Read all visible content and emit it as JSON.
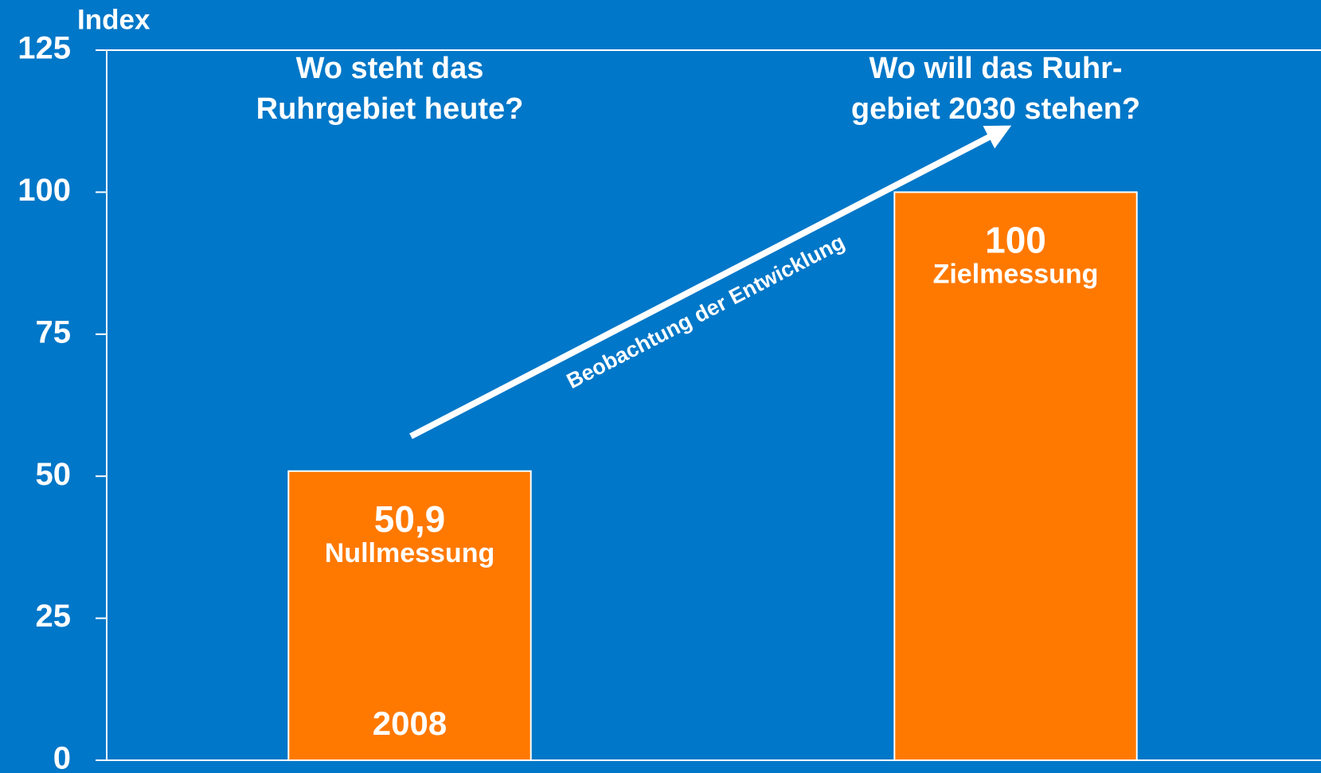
{
  "chart_data": {
    "type": "bar",
    "y_label": "Index",
    "categories": [
      "2008",
      null
    ],
    "values": [
      50.9,
      100
    ],
    "value_labels": [
      "50,9",
      "100"
    ],
    "bar_labels": [
      "Nullmessung",
      "Zielmessung"
    ],
    "headers": [
      [
        "Wo steht das",
        "Ruhrgebiet heute?"
      ],
      [
        "Wo will das Ruhr-",
        "gebiet 2030 stehen?"
      ]
    ],
    "arrow_label": "Beobachtung der Entwicklung",
    "color": "#ff7900",
    "background": "#0077c8",
    "ylim": [
      0,
      125
    ],
    "yticks": [
      0,
      25,
      50,
      75,
      100,
      125
    ]
  }
}
